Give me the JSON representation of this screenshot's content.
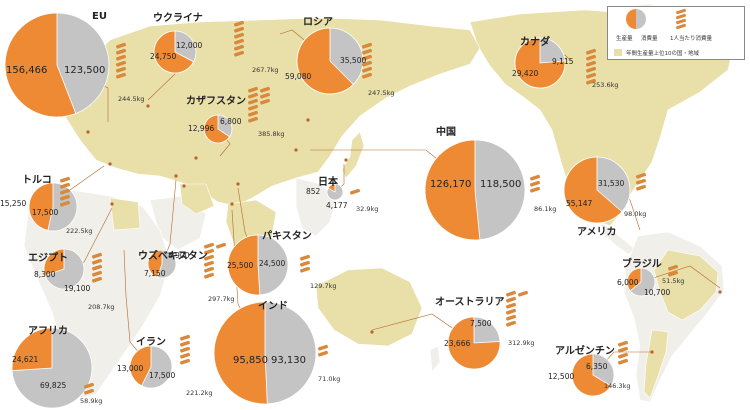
{
  "colors": {
    "production": "#ee8a34",
    "consumption": "#c4c4c4",
    "highlight_land": "#e8dfa9",
    "other_land": "#f0efea",
    "border": "#ffffff",
    "leader": "#b76a2a",
    "dot": "#c0602a"
  },
  "legend": {
    "production_label": "生産量",
    "consumption_label": "消費量",
    "per_capita_label": "1人当たり消費量",
    "highlight_label": "年間生産量上位10の国・地域"
  },
  "countries": [
    {
      "id": "eu",
      "name": "EU",
      "production": "156,466",
      "consumption": "123,500",
      "per_capita": "244.5kg",
      "prod_val": 156466,
      "cons_val": 123500,
      "coils": 6
    },
    {
      "id": "ukraine",
      "name": "ウクライナ",
      "production": "24,750",
      "consumption": "12,000",
      "per_capita": "267.7kg",
      "prod_val": 24750,
      "cons_val": 12000,
      "coils": 6
    },
    {
      "id": "russia",
      "name": "ロシア",
      "production": "59,080",
      "consumption": "35,500",
      "per_capita": "247.5kg",
      "prod_val": 59080,
      "cons_val": 35500,
      "coils": 6
    },
    {
      "id": "kazakhstan",
      "name": "カザフスタン",
      "production": "12,996",
      "consumption": "6,800",
      "per_capita": "385.8kg",
      "prod_val": 12996,
      "cons_val": 6800,
      "coils": 9
    },
    {
      "id": "canada",
      "name": "カナダ",
      "production": "29,420",
      "consumption": "9,115",
      "per_capita": "253.6kg",
      "prod_val": 29420,
      "cons_val": 9115,
      "coils": 6
    },
    {
      "id": "china",
      "name": "中国",
      "production": "126,170",
      "consumption": "118,500",
      "per_capita": "86.1kg",
      "prod_val": 126170,
      "cons_val": 118500,
      "coils": 3
    },
    {
      "id": "usa",
      "name": "アメリカ",
      "production": "55,147",
      "consumption": "31,530",
      "per_capita": "98.0kg",
      "prod_val": 55147,
      "cons_val": 31530,
      "coils": 3
    },
    {
      "id": "japan",
      "name": "日本",
      "production": "852",
      "consumption": "4,177",
      "per_capita": "32.9kg",
      "prod_val": 852,
      "cons_val": 4177,
      "coils": 1
    },
    {
      "id": "turkey",
      "name": "トルコ",
      "production": "15,250",
      "consumption": "17,500",
      "per_capita": "222.5kg",
      "prod_val": 15250,
      "cons_val": 17500,
      "coils": 5
    },
    {
      "id": "egypt",
      "name": "エジプト",
      "production": "8,300",
      "consumption": "19,100",
      "per_capita": "208.7kg",
      "prod_val": 8300,
      "cons_val": 19100,
      "coils": 5
    },
    {
      "id": "uzbekistan",
      "name": "ウズベキスタン",
      "production": "7,150",
      "consumption": "8,900",
      "per_capita": "297.7kg",
      "prod_val": 7150,
      "cons_val": 8900,
      "coils": 7
    },
    {
      "id": "pakistan",
      "name": "パキスタン",
      "production": "25,500",
      "consumption": "24,500",
      "per_capita": "129.7kg",
      "prod_val": 25500,
      "cons_val": 24500,
      "coils": 3
    },
    {
      "id": "india",
      "name": "インド",
      "production": "95,850",
      "consumption": "93,130",
      "per_capita": "71.0kg",
      "prod_val": 95850,
      "cons_val": 93130,
      "coils": 2
    },
    {
      "id": "iran",
      "name": "イラン",
      "production": "13,000",
      "consumption": "17,500",
      "per_capita": "221.2kg",
      "prod_val": 13000,
      "cons_val": 17500,
      "coils": 5
    },
    {
      "id": "africa",
      "name": "アフリカ",
      "production": "24,621",
      "consumption": "69,825",
      "per_capita": "58.9kg",
      "prod_val": 24621,
      "cons_val": 69825,
      "coils": 2
    },
    {
      "id": "australia",
      "name": "オーストラリア",
      "production": "23,666",
      "consumption": "7,500",
      "per_capita": "312.9kg",
      "prod_val": 23666,
      "cons_val": 7500,
      "coils": 7
    },
    {
      "id": "brazil",
      "name": "ブラジル",
      "production": "6,000",
      "consumption": "10,700",
      "per_capita": "51.5kg",
      "prod_val": 6000,
      "cons_val": 10700,
      "coils": 2
    },
    {
      "id": "argentina",
      "name": "アルゼンチン",
      "production": "12,500",
      "consumption": "6,350",
      "per_capita": "146.3kg",
      "prod_val": 12500,
      "cons_val": 6350,
      "coils": 4
    }
  ]
}
